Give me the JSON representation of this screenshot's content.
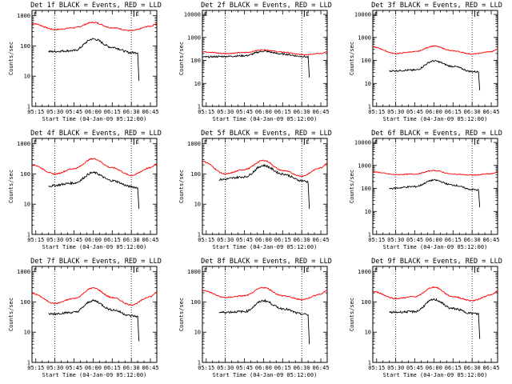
{
  "chart_data": [
    {
      "type": "line",
      "title": "Det 1f BLACK = Events, RED = LLD",
      "xlabel": "Start Time (04-Jan-09 05:12:00)",
      "ylabel": "Counts/sec",
      "x_ticks": [
        "05:15",
        "05:30",
        "05:45",
        "06:00",
        "06:15",
        "06:30",
        "06:45"
      ],
      "y_ticks": [
        "1",
        "10",
        "100",
        "1000"
      ],
      "ylim": [
        1,
        1500
      ],
      "yscale": "log",
      "markers": [
        {
          "label": "E",
          "time": "05:12"
        },
        {
          "label": "E",
          "time": "06:32"
        }
      ],
      "dotted_lines": [
        "05:30",
        "06:30"
      ],
      "series": [
        {
          "color": "#ff0000",
          "x": [
            "05:12",
            "05:30",
            "05:45",
            "06:00",
            "06:15",
            "06:30",
            "06:45",
            "06:50"
          ],
          "values": [
            550,
            350,
            400,
            600,
            400,
            320,
            450,
            550
          ]
        },
        {
          "color": "#000000",
          "x": [
            "05:25",
            "05:45",
            "06:00",
            "06:15",
            "06:30",
            "06:35",
            "06:36"
          ],
          "values": [
            65,
            70,
            170,
            90,
            60,
            60,
            7
          ]
        }
      ]
    },
    {
      "type": "line",
      "title": "Det 2f BLACK = Events, RED = LLD",
      "xlabel": "Start Time (04-Jan-09 05:12:00)",
      "ylabel": "Counts/sec",
      "x_ticks": [
        "05:15",
        "05:30",
        "05:45",
        "06:00",
        "06:15",
        "06:30",
        "06:45"
      ],
      "y_ticks": [
        "1",
        "10",
        "100",
        "1000",
        "10000"
      ],
      "ylim": [
        1,
        15000
      ],
      "yscale": "log",
      "markers": [
        {
          "label": "E",
          "time": "05:12"
        },
        {
          "label": "E",
          "time": "06:32"
        }
      ],
      "dotted_lines": [
        "05:30",
        "06:30"
      ],
      "series": [
        {
          "color": "#ff0000",
          "x": [
            "05:12",
            "05:30",
            "05:45",
            "06:00",
            "06:15",
            "06:30",
            "06:45",
            "06:50"
          ],
          "values": [
            240,
            200,
            220,
            290,
            230,
            180,
            200,
            240
          ]
        },
        {
          "color": "#000000",
          "x": [
            "05:12",
            "05:30",
            "05:45",
            "06:00",
            "06:15",
            "06:30",
            "06:35",
            "06:36"
          ],
          "values": [
            140,
            150,
            160,
            250,
            190,
            150,
            140,
            18
          ]
        }
      ]
    },
    {
      "type": "line",
      "title": "Det 3f BLACK = Events, RED = LLD",
      "xlabel": "Start Time (04-Jan-09 05:12:00)",
      "ylabel": "Counts/sec",
      "x_ticks": [
        "05:15",
        "05:30",
        "05:45",
        "06:00",
        "06:15",
        "06:30",
        "06:45"
      ],
      "y_ticks": [
        "1",
        "10",
        "100",
        "1000",
        "10000"
      ],
      "ylim": [
        1,
        15000
      ],
      "yscale": "log",
      "markers": [
        {
          "label": "E",
          "time": "05:12"
        },
        {
          "label": "E",
          "time": "06:32"
        }
      ],
      "dotted_lines": [
        "05:30",
        "06:30"
      ],
      "series": [
        {
          "color": "#ff0000",
          "x": [
            "05:12",
            "05:30",
            "05:45",
            "06:00",
            "06:15",
            "06:30",
            "06:45",
            "06:50"
          ],
          "values": [
            380,
            200,
            240,
            420,
            260,
            190,
            240,
            300
          ]
        },
        {
          "color": "#000000",
          "x": [
            "05:25",
            "05:45",
            "06:00",
            "06:15",
            "06:30",
            "06:35",
            "06:36"
          ],
          "values": [
            35,
            38,
            95,
            55,
            33,
            32,
            5
          ]
        }
      ]
    },
    {
      "type": "line",
      "title": "Det 4f BLACK = Events, RED = LLD",
      "xlabel": "Start Time (04-Jan-09 05:12:00)",
      "ylabel": "Counts/sec",
      "x_ticks": [
        "05:15",
        "05:30",
        "05:45",
        "06:00",
        "06:15",
        "06:30",
        "06:45"
      ],
      "y_ticks": [
        "1",
        "10",
        "100",
        "1000"
      ],
      "ylim": [
        1,
        1500
      ],
      "yscale": "log",
      "markers": [
        {
          "label": "E",
          "time": "05:12"
        },
        {
          "label": "E",
          "time": "06:32"
        }
      ],
      "dotted_lines": [
        "05:30",
        "06:30"
      ],
      "series": [
        {
          "color": "#ff0000",
          "x": [
            "05:12",
            "05:30",
            "05:45",
            "06:00",
            "06:15",
            "06:30",
            "06:45",
            "06:50"
          ],
          "values": [
            200,
            100,
            150,
            320,
            160,
            90,
            160,
            220
          ]
        },
        {
          "color": "#000000",
          "x": [
            "05:25",
            "05:45",
            "06:00",
            "06:15",
            "06:30",
            "06:35",
            "06:36"
          ],
          "values": [
            40,
            50,
            110,
            60,
            38,
            35,
            7
          ]
        }
      ]
    },
    {
      "type": "line",
      "title": "Det 5f BLACK = Events, RED = LLD",
      "xlabel": "Start Time (04-Jan-09 05:12:00)",
      "ylabel": "Counts/sec",
      "x_ticks": [
        "05:15",
        "05:30",
        "05:45",
        "06:00",
        "06:15",
        "06:30",
        "06:45"
      ],
      "y_ticks": [
        "1",
        "10",
        "100",
        "1000"
      ],
      "ylim": [
        1,
        1500
      ],
      "yscale": "log",
      "markers": [
        {
          "label": "E",
          "time": "05:12"
        },
        {
          "label": "E",
          "time": "06:32"
        }
      ],
      "dotted_lines": [
        "05:30",
        "06:30"
      ],
      "series": [
        {
          "color": "#ff0000",
          "x": [
            "05:12",
            "05:30",
            "05:45",
            "06:00",
            "06:15",
            "06:30",
            "06:45",
            "06:50"
          ],
          "values": [
            260,
            100,
            140,
            280,
            130,
            85,
            160,
            230
          ]
        },
        {
          "color": "#000000",
          "x": [
            "05:25",
            "05:45",
            "06:00",
            "06:15",
            "06:30",
            "06:35",
            "06:36"
          ],
          "values": [
            65,
            80,
            190,
            100,
            60,
            55,
            7
          ]
        }
      ]
    },
    {
      "type": "line",
      "title": "Det 6f BLACK = Events, RED = LLD",
      "xlabel": "Start Time (04-Jan-09 05:12:00)",
      "ylabel": "Counts/sec",
      "x_ticks": [
        "05:15",
        "05:30",
        "05:45",
        "06:00",
        "06:15",
        "06:30",
        "06:45"
      ],
      "y_ticks": [
        "1",
        "10",
        "100",
        "1000",
        "10000"
      ],
      "ylim": [
        1,
        15000
      ],
      "yscale": "log",
      "markers": [
        {
          "label": "E",
          "time": "05:12"
        },
        {
          "label": "E",
          "time": "06:32"
        }
      ],
      "dotted_lines": [
        "05:30",
        "06:30"
      ],
      "series": [
        {
          "color": "#ff0000",
          "x": [
            "05:12",
            "05:30",
            "05:45",
            "06:00",
            "06:15",
            "06:30",
            "06:45",
            "06:50"
          ],
          "values": [
            520,
            400,
            420,
            600,
            420,
            380,
            430,
            520
          ]
        },
        {
          "color": "#000000",
          "x": [
            "05:25",
            "05:45",
            "06:00",
            "06:15",
            "06:30",
            "06:35",
            "06:36"
          ],
          "values": [
            100,
            120,
            230,
            140,
            90,
            85,
            15
          ]
        }
      ]
    },
    {
      "type": "line",
      "title": "Det 7f BLACK = Events, RED = LLD",
      "xlabel": "Start Time (04-Jan-09 05:12:00)",
      "ylabel": "Counts/sec",
      "x_ticks": [
        "05:15",
        "05:30",
        "05:45",
        "06:00",
        "06:15",
        "06:30",
        "06:45"
      ],
      "y_ticks": [
        "1",
        "10",
        "100",
        "1000"
      ],
      "ylim": [
        1,
        1500
      ],
      "yscale": "log",
      "markers": [
        {
          "label": "E",
          "time": "05:12"
        },
        {
          "label": "E",
          "time": "06:32"
        }
      ],
      "dotted_lines": [
        "05:30",
        "06:30"
      ],
      "series": [
        {
          "color": "#ff0000",
          "x": [
            "05:12",
            "05:30",
            "05:45",
            "06:00",
            "06:15",
            "06:30",
            "06:45",
            "06:50"
          ],
          "values": [
            190,
            90,
            130,
            290,
            140,
            80,
            150,
            210
          ]
        },
        {
          "color": "#000000",
          "x": [
            "05:25",
            "05:45",
            "06:00",
            "06:15",
            "06:30",
            "06:35",
            "06:36"
          ],
          "values": [
            40,
            45,
            110,
            55,
            35,
            33,
            5
          ]
        }
      ]
    },
    {
      "type": "line",
      "title": "Det 8f BLACK = Events, RED = LLD",
      "xlabel": "Start Time (04-Jan-09 05:12:00)",
      "ylabel": "Counts/sec",
      "x_ticks": [
        "05:15",
        "05:30",
        "05:45",
        "06:00",
        "06:15",
        "06:30",
        "06:45"
      ],
      "y_ticks": [
        "1",
        "10",
        "100",
        "1000"
      ],
      "ylim": [
        1,
        1500
      ],
      "yscale": "log",
      "markers": [
        {
          "label": "E",
          "time": "05:12"
        },
        {
          "label": "E",
          "time": "06:32"
        }
      ],
      "dotted_lines": [
        "05:30",
        "06:30"
      ],
      "series": [
        {
          "color": "#ff0000",
          "x": [
            "05:12",
            "05:30",
            "05:45",
            "06:00",
            "06:15",
            "06:30",
            "06:45",
            "06:50"
          ],
          "values": [
            240,
            140,
            160,
            300,
            160,
            120,
            180,
            250
          ]
        },
        {
          "color": "#000000",
          "x": [
            "05:25",
            "05:45",
            "06:00",
            "06:15",
            "06:30",
            "06:35",
            "06:36"
          ],
          "values": [
            45,
            48,
            110,
            60,
            40,
            38,
            4
          ]
        }
      ]
    },
    {
      "type": "line",
      "title": "Det 9f BLACK = Events, RED = LLD",
      "xlabel": "Start Time (04-Jan-09 05:12:00)",
      "ylabel": "Counts/sec",
      "x_ticks": [
        "05:15",
        "05:30",
        "05:45",
        "06:00",
        "06:15",
        "06:30",
        "06:45"
      ],
      "y_ticks": [
        "1",
        "10",
        "100",
        "1000"
      ],
      "ylim": [
        1,
        1500
      ],
      "yscale": "log",
      "markers": [
        {
          "label": "E",
          "time": "05:12"
        },
        {
          "label": "E",
          "time": "06:32"
        }
      ],
      "dotted_lines": [
        "05:30",
        "06:30"
      ],
      "series": [
        {
          "color": "#ff0000",
          "x": [
            "05:12",
            "05:30",
            "05:45",
            "06:00",
            "06:15",
            "06:30",
            "06:45",
            "06:50"
          ],
          "values": [
            220,
            130,
            150,
            310,
            150,
            110,
            170,
            230
          ]
        },
        {
          "color": "#000000",
          "x": [
            "05:25",
            "05:45",
            "06:00",
            "06:15",
            "06:30",
            "06:35",
            "06:36"
          ],
          "values": [
            45,
            48,
            120,
            60,
            42,
            40,
            6
          ]
        }
      ]
    }
  ]
}
